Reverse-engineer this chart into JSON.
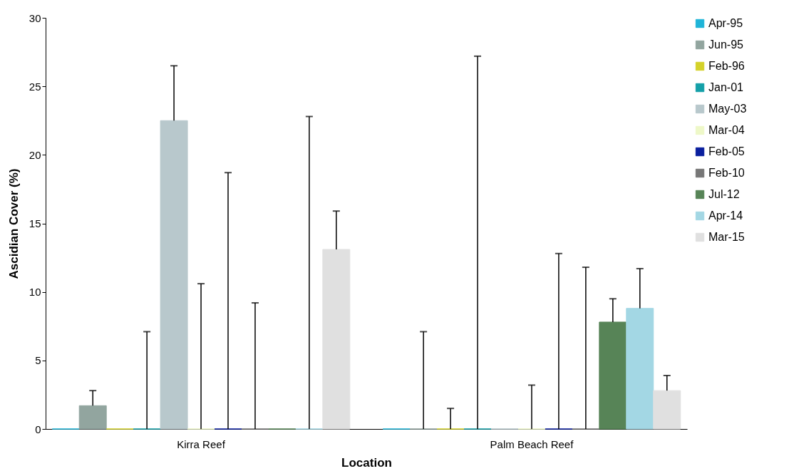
{
  "chart_data": {
    "type": "bar",
    "xlabel": "Location",
    "ylabel": "Ascidian Cover (%)",
    "categories": [
      "Kirra Reef",
      "Palm Beach Reef"
    ],
    "series": [
      {
        "name": "Apr-95",
        "color": "#1fb4d8",
        "values": [
          0,
          0
        ],
        "errors": [
          null,
          null
        ]
      },
      {
        "name": "Jun-95",
        "color": "#92a59f",
        "values": [
          1.7,
          0
        ],
        "errors": [
          [
            1.7,
            2.8
          ],
          [
            0,
            7.1
          ]
        ]
      },
      {
        "name": "Feb-96",
        "color": "#d4d22a",
        "values": [
          0,
          0
        ],
        "errors": [
          null,
          [
            0,
            1.5
          ]
        ]
      },
      {
        "name": "Jan-01",
        "color": "#14a0a8",
        "values": [
          0,
          0
        ],
        "errors": [
          [
            0,
            7.1
          ],
          [
            0,
            27.2
          ]
        ]
      },
      {
        "name": "May-03",
        "color": "#b8c8cc",
        "values": [
          22.5,
          0
        ],
        "errors": [
          [
            22.5,
            26.5
          ],
          null
        ]
      },
      {
        "name": "Mar-04",
        "color": "#eef8c8",
        "values": [
          0,
          0
        ],
        "errors": [
          [
            0,
            10.6
          ],
          [
            0,
            3.2
          ]
        ]
      },
      {
        "name": "Feb-05",
        "color": "#0a1f9e",
        "values": [
          0,
          0
        ],
        "errors": [
          [
            0,
            18.7
          ],
          [
            0,
            12.8
          ]
        ]
      },
      {
        "name": "Feb-10",
        "color": "#777777",
        "values": [
          0,
          0
        ],
        "errors": [
          [
            0,
            9.2
          ],
          [
            0,
            11.8
          ]
        ]
      },
      {
        "name": "Jul-12",
        "color": "#578457",
        "values": [
          0,
          7.8
        ],
        "errors": [
          null,
          [
            7.8,
            9.5
          ]
        ]
      },
      {
        "name": "Apr-14",
        "color": "#a3d7e4",
        "values": [
          0,
          8.8
        ],
        "errors": [
          [
            0,
            22.8
          ],
          [
            8.8,
            11.7
          ]
        ]
      },
      {
        "name": "Mar-15",
        "color": "#e0e0e0",
        "values": [
          13.1,
          2.8
        ],
        "errors": [
          [
            13.1,
            15.9
          ],
          [
            2.8,
            3.9
          ]
        ]
      }
    ],
    "ylim": [
      0,
      30
    ],
    "yticks": [
      0,
      5,
      10,
      15,
      20,
      25,
      30
    ],
    "grid": false,
    "legend": "right"
  }
}
